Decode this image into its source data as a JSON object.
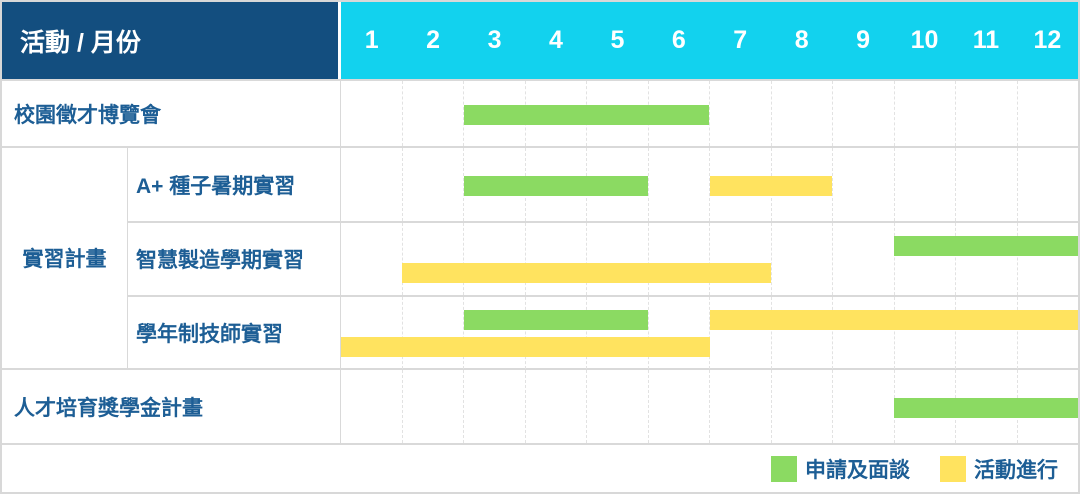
{
  "header": {
    "label": "活動 / 月份",
    "months": [
      "1",
      "2",
      "3",
      "4",
      "5",
      "6",
      "7",
      "8",
      "9",
      "10",
      "11",
      "12"
    ]
  },
  "group": {
    "label": "實習計畫"
  },
  "rows": [
    {
      "label": "校園徵才博覽會",
      "bars": [
        {
          "color": "green",
          "start": 3,
          "end": 6,
          "level": "middle"
        }
      ]
    },
    {
      "label": "A+ 種子暑期實習",
      "bars": [
        {
          "color": "green",
          "start": 3,
          "end": 5,
          "level": "middle"
        },
        {
          "color": "yellow",
          "start": 7,
          "end": 8,
          "level": "middle"
        }
      ]
    },
    {
      "label": "智慧製造學期實習",
      "bars": [
        {
          "color": "green",
          "start": 10,
          "end": 12,
          "level": "top"
        },
        {
          "color": "yellow",
          "start": 2,
          "end": 7,
          "level": "bottom"
        }
      ]
    },
    {
      "label": "學年制技師實習",
      "bars": [
        {
          "color": "green",
          "start": 3,
          "end": 5,
          "level": "top"
        },
        {
          "color": "yellow",
          "start": 7,
          "end": 12,
          "level": "top"
        },
        {
          "color": "yellow",
          "start": 1,
          "end": 6,
          "level": "bottom"
        }
      ]
    },
    {
      "label": "人才培育獎學金計畫",
      "bars": [
        {
          "color": "green",
          "start": 10,
          "end": 12,
          "level": "middle"
        }
      ]
    }
  ],
  "legend": {
    "items": [
      {
        "color": "green",
        "label": "申請及面談"
      },
      {
        "color": "yellow",
        "label": "活動進行"
      }
    ]
  },
  "colors": {
    "navy": "#134E7F",
    "cyan": "#12D2EE",
    "green": "#8BDA62",
    "yellow": "#FFE35F",
    "label_text": "#1D5E95",
    "border": "#D9D9D9"
  },
  "chart_data": {
    "type": "bar",
    "variant": "gantt",
    "title": "活動 / 月份",
    "xlabel": "月份",
    "x_ticks": [
      1,
      2,
      3,
      4,
      5,
      6,
      7,
      8,
      9,
      10,
      11,
      12
    ],
    "x_range": [
      1,
      12
    ],
    "grid": true,
    "legend_position": "bottom-right",
    "tasks": [
      {
        "activity": "校園徵才博覽會",
        "group": null,
        "phases": [
          {
            "phase": "申請及面談",
            "start_month": 3,
            "end_month": 6
          }
        ]
      },
      {
        "activity": "A+ 種子暑期實習",
        "group": "實習計畫",
        "phases": [
          {
            "phase": "申請及面談",
            "start_month": 3,
            "end_month": 5
          },
          {
            "phase": "活動進行",
            "start_month": 7,
            "end_month": 8
          }
        ]
      },
      {
        "activity": "智慧製造學期實習",
        "group": "實習計畫",
        "phases": [
          {
            "phase": "申請及面談",
            "start_month": 10,
            "end_month": 12
          },
          {
            "phase": "活動進行",
            "start_month": 2,
            "end_month": 7
          }
        ]
      },
      {
        "activity": "學年制技師實習",
        "group": "實習計畫",
        "phases": [
          {
            "phase": "申請及面談",
            "start_month": 3,
            "end_month": 5
          },
          {
            "phase": "活動進行",
            "start_month": 7,
            "end_month": 12
          },
          {
            "phase": "活動進行",
            "start_month": 1,
            "end_month": 6
          }
        ]
      },
      {
        "activity": "人才培育獎學金計畫",
        "group": null,
        "phases": [
          {
            "phase": "申請及面談",
            "start_month": 10,
            "end_month": 12
          }
        ]
      }
    ],
    "legend": [
      {
        "label": "申請及面談",
        "color": "#8BDA62"
      },
      {
        "label": "活動進行",
        "color": "#FFE35F"
      }
    ]
  }
}
